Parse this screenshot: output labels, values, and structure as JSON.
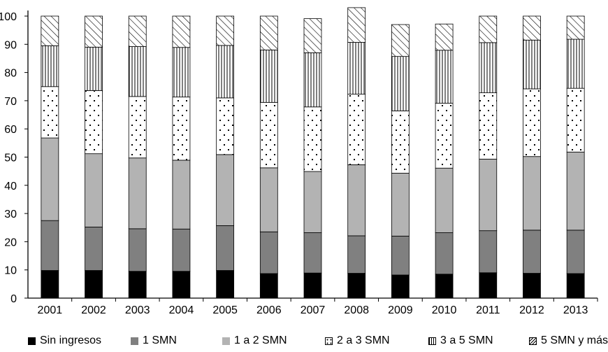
{
  "chart_data": {
    "type": "bar",
    "stacked": true,
    "categories": [
      "2001",
      "2002",
      "2003",
      "2004",
      "2005",
      "2006",
      "2007",
      "2008",
      "2009",
      "2010",
      "2011",
      "2012",
      "2013"
    ],
    "ylim": [
      0,
      100
    ],
    "yticks": [
      0,
      10,
      20,
      30,
      40,
      50,
      60,
      70,
      80,
      90,
      100
    ],
    "series": [
      {
        "name": "Sin ingresos",
        "pattern": "solid-black",
        "values": [
          9.8,
          9.8,
          9.5,
          9.5,
          9.8,
          8.7,
          8.9,
          8.8,
          8.2,
          8.5,
          9.0,
          8.8,
          8.7
        ]
      },
      {
        "name": "1 SMN",
        "pattern": "solid-darkgray",
        "values": [
          17.7,
          15.4,
          15.1,
          15.0,
          15.9,
          14.8,
          14.3,
          13.3,
          13.8,
          14.7,
          14.9,
          15.3,
          15.4
        ]
      },
      {
        "name": "1 a 2 SMN",
        "pattern": "solid-lightgray",
        "values": [
          29.3,
          26.0,
          25.1,
          24.4,
          25.2,
          22.7,
          21.7,
          25.2,
          22.3,
          22.9,
          25.4,
          26.1,
          27.7
        ]
      },
      {
        "name": "2 a 3 SMN",
        "pattern": "dots",
        "values": [
          18.2,
          22.4,
          21.8,
          22.4,
          20.1,
          23.2,
          22.9,
          25.0,
          22.1,
          23.0,
          23.5,
          24.0,
          22.6
        ]
      },
      {
        "name": "3 a 5 SMN",
        "pattern": "vertical-lines",
        "values": [
          14.5,
          15.4,
          17.7,
          17.6,
          18.6,
          18.6,
          19.2,
          18.4,
          19.3,
          18.8,
          17.8,
          17.3,
          17.4
        ]
      },
      {
        "name": "5 SMN y más",
        "pattern": "diagonal-lines",
        "values": [
          10.5,
          11.0,
          10.8,
          11.1,
          10.4,
          12.0,
          12.1,
          12.3,
          11.3,
          9.3,
          9.4,
          8.5,
          8.2
        ]
      }
    ],
    "xlabel": "",
    "ylabel": "",
    "legend_position": "bottom",
    "grid": false
  }
}
